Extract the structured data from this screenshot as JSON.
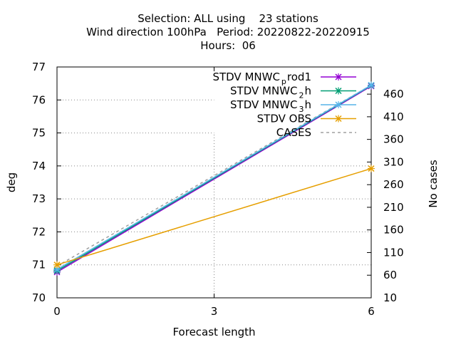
{
  "title": {
    "line1": "Selection: ALL using    23 stations",
    "line2": "Wind direction 100hPa   Period: 20220822-20220915",
    "line3": "Hours:  06"
  },
  "chart_data": {
    "type": "line",
    "xlabel": "Forecast length",
    "ylabel": "deg",
    "y2label": "No cases",
    "xlim": [
      0,
      6
    ],
    "ylim": [
      70,
      77
    ],
    "y2lim": [
      10,
      520
    ],
    "xticks": [
      0,
      3,
      6
    ],
    "yticks": [
      70,
      71,
      72,
      73,
      74,
      75,
      76,
      77
    ],
    "y2ticks": [
      10,
      60,
      110,
      160,
      210,
      260,
      310,
      360,
      410,
      460
    ],
    "grid": true,
    "legend_position": "top-right",
    "x": [
      0,
      6
    ],
    "series": [
      {
        "name": "STDV MNWC",
        "sub": "p",
        "name_tail": "rod1",
        "axis": "y",
        "color": "#9400d3",
        "marker": "x",
        "values": [
          70.78,
          76.42
        ]
      },
      {
        "name": "STDV MNWC",
        "sub": "2",
        "name_tail": "h",
        "axis": "y",
        "color": "#009e73",
        "marker": "x",
        "values": [
          70.82,
          76.44
        ]
      },
      {
        "name": "STDV MNWC",
        "sub": "3",
        "name_tail": "h",
        "axis": "y",
        "color": "#56b4e9",
        "marker": "x",
        "values": [
          70.86,
          76.45
        ]
      },
      {
        "name": "STDV OBS",
        "sub": "",
        "name_tail": "",
        "axis": "y",
        "color": "#e69f00",
        "marker": "x",
        "values": [
          71.0,
          73.92
        ]
      },
      {
        "name": "CASES",
        "sub": "",
        "name_tail": "",
        "axis": "y2",
        "color": "#a0a0a0",
        "marker": "none",
        "dashed": true,
        "values": [
          80,
          480
        ]
      }
    ]
  }
}
